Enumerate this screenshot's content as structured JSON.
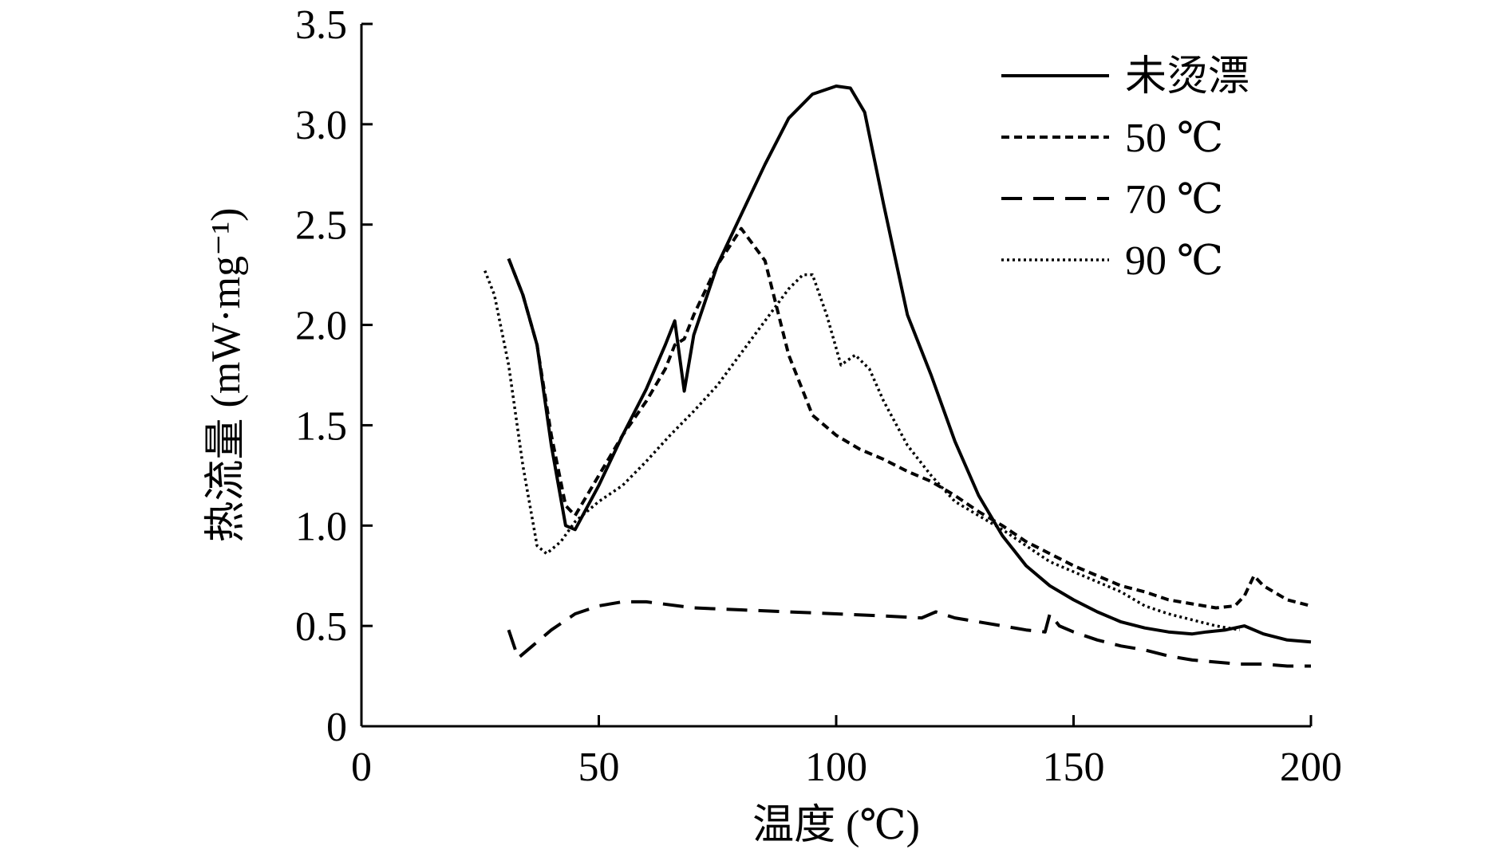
{
  "chart_data": {
    "type": "line",
    "title": "",
    "xlabel": "温度 (℃)",
    "ylabel": "热流量 (mW·mg⁻¹)",
    "xlim": [
      0,
      200
    ],
    "ylim": [
      0,
      3.5
    ],
    "xticks": [
      0,
      50,
      100,
      150,
      200
    ],
    "yticks": [
      0,
      0.5,
      1.0,
      1.5,
      2.0,
      2.5,
      3.0,
      3.5
    ],
    "xtick_labels": [
      "0",
      "50",
      "100",
      "150",
      "200"
    ],
    "ytick_labels": [
      "0",
      "0.5",
      "1.0",
      "1.5",
      "2.0",
      "2.5",
      "3.0",
      "3.5"
    ],
    "grid": false,
    "legend_position": "top-right",
    "series": [
      {
        "name": "未烫漂",
        "style": "solid",
        "x": [
          31,
          34,
          37,
          40,
          43,
          45,
          50,
          55,
          60,
          64,
          66,
          68,
          70,
          75,
          80,
          85,
          90,
          95,
          100,
          103,
          106,
          110,
          115,
          120,
          125,
          130,
          135,
          140,
          145,
          150,
          155,
          160,
          165,
          170,
          175,
          178,
          182,
          186,
          190,
          195,
          200
        ],
        "y": [
          2.33,
          2.15,
          1.9,
          1.4,
          1.0,
          0.98,
          1.2,
          1.45,
          1.68,
          1.9,
          2.02,
          1.67,
          1.95,
          2.3,
          2.55,
          2.8,
          3.03,
          3.15,
          3.19,
          3.18,
          3.06,
          2.6,
          2.05,
          1.75,
          1.42,
          1.15,
          0.95,
          0.8,
          0.7,
          0.63,
          0.57,
          0.52,
          0.49,
          0.47,
          0.46,
          0.47,
          0.48,
          0.5,
          0.46,
          0.43,
          0.42
        ]
      },
      {
        "name": "50 ℃",
        "style": "short-dash",
        "x": [
          31,
          34,
          37,
          40,
          43,
          45,
          50,
          55,
          60,
          64,
          66,
          68,
          70,
          75,
          80,
          85,
          90,
          95,
          100,
          105,
          110,
          115,
          120,
          125,
          130,
          135,
          140,
          145,
          150,
          155,
          160,
          165,
          170,
          175,
          180,
          184,
          186,
          188,
          190,
          195,
          200
        ],
        "y": [
          2.33,
          2.15,
          1.9,
          1.45,
          1.1,
          1.05,
          1.25,
          1.45,
          1.62,
          1.78,
          1.9,
          1.93,
          2.05,
          2.3,
          2.48,
          2.32,
          1.85,
          1.55,
          1.45,
          1.38,
          1.33,
          1.27,
          1.22,
          1.15,
          1.07,
          1.0,
          0.92,
          0.86,
          0.8,
          0.75,
          0.7,
          0.67,
          0.63,
          0.61,
          0.59,
          0.6,
          0.65,
          0.75,
          0.7,
          0.63,
          0.6
        ]
      },
      {
        "name": "70 ℃",
        "style": "long-dash",
        "x": [
          31,
          33,
          36,
          40,
          45,
          50,
          55,
          60,
          70,
          80,
          90,
          100,
          110,
          118,
          121,
          125,
          130,
          135,
          140,
          144,
          145,
          147,
          150,
          155,
          160,
          165,
          170,
          175,
          180,
          185,
          190,
          195,
          200
        ],
        "y": [
          0.48,
          0.34,
          0.4,
          0.48,
          0.56,
          0.6,
          0.62,
          0.62,
          0.59,
          0.58,
          0.57,
          0.56,
          0.55,
          0.54,
          0.57,
          0.54,
          0.52,
          0.5,
          0.48,
          0.47,
          0.56,
          0.5,
          0.47,
          0.43,
          0.4,
          0.38,
          0.35,
          0.33,
          0.32,
          0.31,
          0.31,
          0.3,
          0.3
        ]
      },
      {
        "name": "90 ℃",
        "style": "dotted",
        "x": [
          26,
          28,
          31,
          34,
          37,
          39,
          42,
          45,
          50,
          55,
          60,
          65,
          70,
          75,
          80,
          85,
          90,
          93,
          95,
          98,
          101,
          104,
          107,
          110,
          115,
          120,
          125,
          130,
          135,
          140,
          145,
          150,
          155,
          160,
          165,
          170,
          175,
          180,
          185
        ],
        "y": [
          2.27,
          2.15,
          1.8,
          1.3,
          0.9,
          0.86,
          0.92,
          1.02,
          1.12,
          1.2,
          1.32,
          1.45,
          1.57,
          1.7,
          1.86,
          2.02,
          2.18,
          2.25,
          2.25,
          2.05,
          1.8,
          1.85,
          1.78,
          1.62,
          1.4,
          1.25,
          1.12,
          1.05,
          0.98,
          0.9,
          0.82,
          0.77,
          0.72,
          0.67,
          0.6,
          0.56,
          0.53,
          0.5,
          0.48
        ]
      }
    ]
  }
}
